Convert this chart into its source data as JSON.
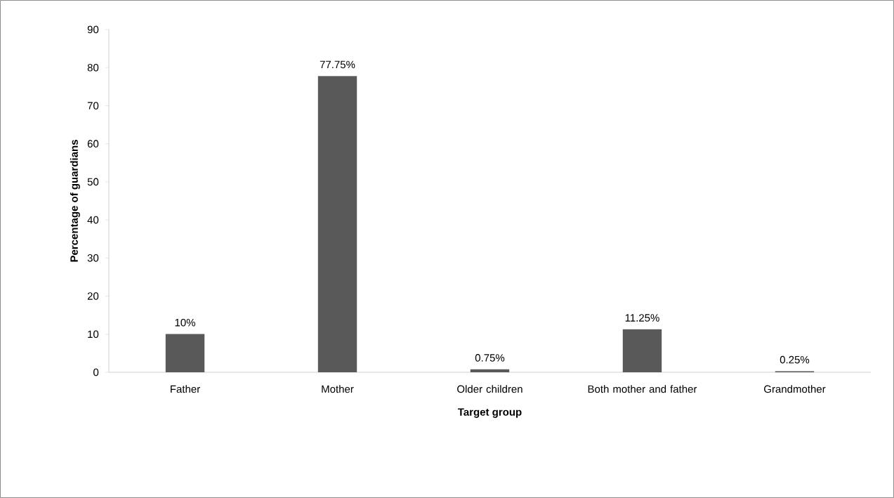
{
  "chart_data": {
    "type": "bar",
    "xlabel": "Target group",
    "ylabel": "Percentage of guardians",
    "categories": [
      "Father",
      "Mother",
      "Older children",
      "Both mother and father",
      "Grandmother"
    ],
    "values": [
      10,
      77.75,
      0.75,
      11.25,
      0.25
    ],
    "value_labels": [
      "10%",
      "77.75%",
      "0.75%",
      "11.25%",
      "0.25%"
    ],
    "color": "#595959",
    "ylim": [
      0,
      90
    ],
    "yticks": [
      0,
      10,
      20,
      30,
      40,
      50,
      60,
      70,
      80,
      90
    ]
  }
}
